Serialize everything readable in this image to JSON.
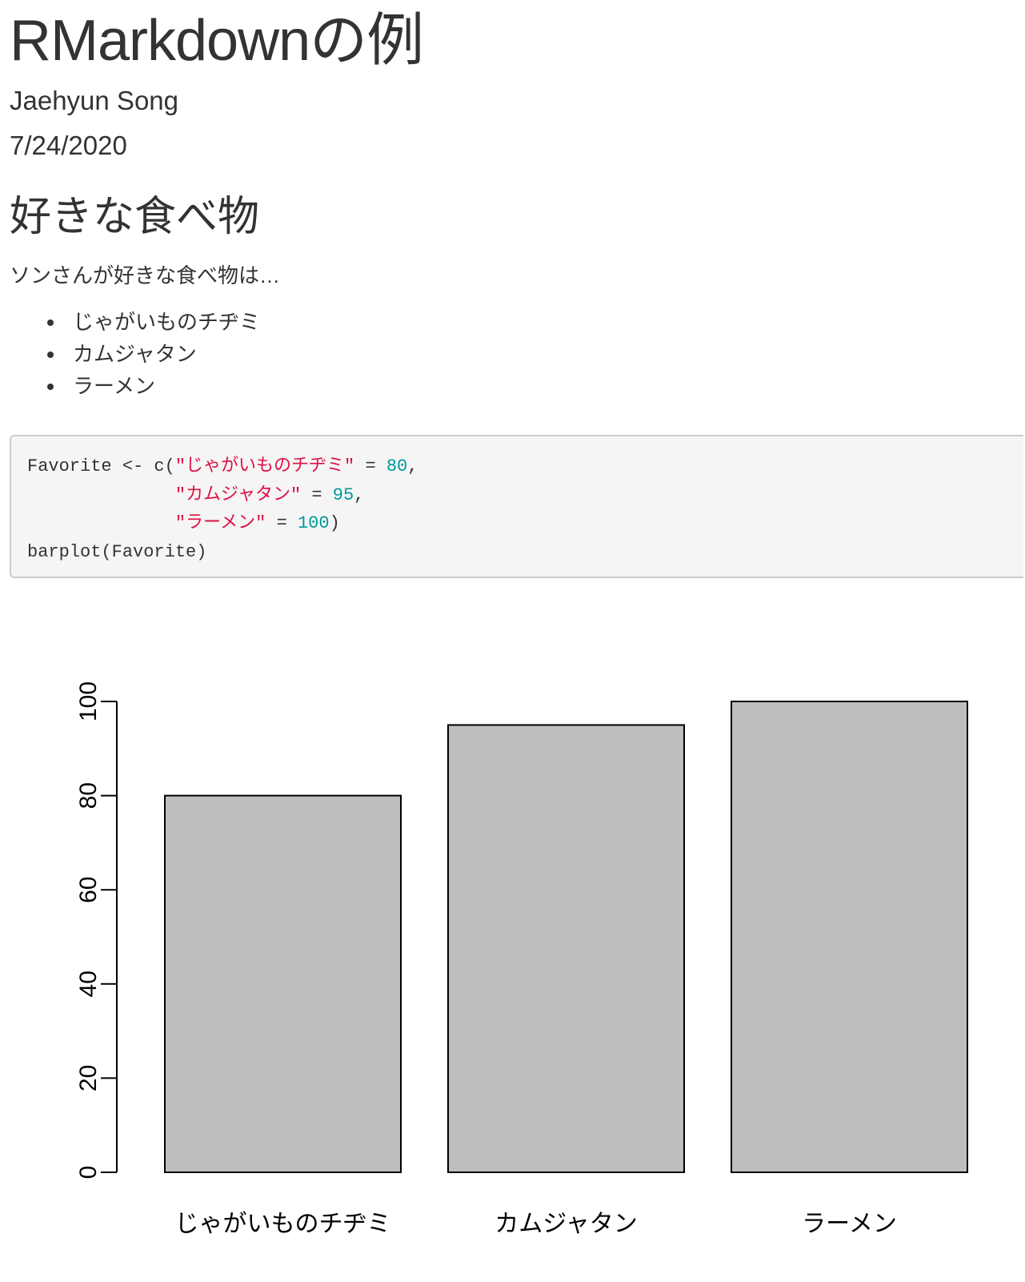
{
  "document": {
    "title": "RMarkdownの例",
    "author": "Jaehyun Song",
    "date": "7/24/2020"
  },
  "section": {
    "heading": "好きな食べ物",
    "intro": "ソンさんが好きな食べ物は…",
    "items": [
      "じゃがいものチヂミ",
      "カムジャタン",
      "ラーメン"
    ]
  },
  "code": {
    "lines": [
      [
        {
          "t": "Favorite <- c("
        },
        {
          "t": "\"じゃがいものチヂミ\"",
          "k": "str"
        },
        {
          "t": " = "
        },
        {
          "t": "80",
          "k": "num"
        },
        {
          "t": ","
        }
      ],
      [
        {
          "t": "              "
        },
        {
          "t": "\"カムジャタン\"",
          "k": "str"
        },
        {
          "t": " = "
        },
        {
          "t": "95",
          "k": "num"
        },
        {
          "t": ","
        }
      ],
      [
        {
          "t": "              "
        },
        {
          "t": "\"ラーメン\"",
          "k": "str"
        },
        {
          "t": " = "
        },
        {
          "t": "100",
          "k": "num"
        },
        {
          "t": ")"
        }
      ],
      [
        {
          "t": "barplot(Favorite)"
        }
      ]
    ],
    "colors": {
      "string": "#dd1144",
      "number": "#009999",
      "text": "#333333"
    }
  },
  "chart_data": {
    "type": "bar",
    "categories": [
      "じゃがいものチヂミ",
      "カムジャタン",
      "ラーメン"
    ],
    "values": [
      80,
      95,
      100
    ],
    "title": "",
    "xlabel": "",
    "ylabel": "",
    "ylim": [
      0,
      100
    ],
    "yticks": [
      0,
      20,
      40,
      60,
      80,
      100
    ],
    "grid": false,
    "bar_fill": "#bebebe",
    "bar_stroke": "#000000"
  }
}
